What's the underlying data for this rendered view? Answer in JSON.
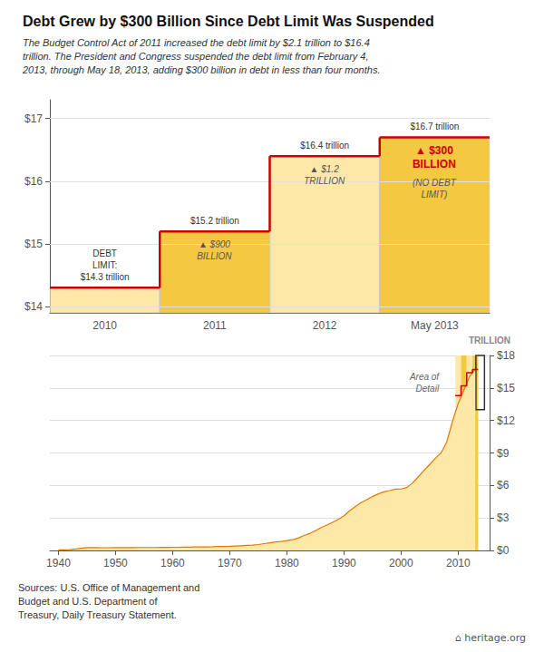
{
  "chart_data": [
    {
      "type": "bar",
      "title": "Debt Grew by $300 Billion Since Debt Limit Was Suspended",
      "subtitle": "The Budget Control Act of 2011 increased the debt limit by $2.1 trillion to $16.4\ntrillion. The President and Congress suspended the debt limit from February 4,\n2013, through May 18, 2013, adding $300 billion in debt in less than four months.",
      "categories": [
        "2010",
        "2011",
        "2012",
        "May 2013"
      ],
      "series": [
        {
          "type": "bar",
          "values": [
            14.3,
            15.2,
            16.4,
            16.7
          ],
          "colors": [
            "#fde8a8",
            "#f5c842",
            "#fde8a8",
            "#f5c842"
          ],
          "value_labels": [
            "DEBT\nLIMIT:\n$14.3 trillion",
            "$15.2 trillion",
            "$16.4 trillion",
            "$16.7 trillion"
          ]
        },
        {
          "type": "line",
          "line_style": "step",
          "color": "#cc0000",
          "values": [
            14.3,
            15.2,
            16.4,
            16.7
          ]
        }
      ],
      "data_labels": true,
      "ylim": [
        13.9,
        17.3
      ],
      "yticks": [
        {
          "value": 14,
          "label": "$14"
        },
        {
          "value": 15,
          "label": "$15"
        },
        {
          "value": 16,
          "label": "$16"
        },
        {
          "value": 17,
          "label": "$17"
        }
      ],
      "grid": true,
      "annotations": [
        {
          "category": "2011",
          "text": "▲ $900\nBILLION"
        },
        {
          "category": "2012",
          "text": "▲ $1.2\nTRILLION"
        },
        {
          "category": "May 2013",
          "text": "▲ $300\nBILLION",
          "color": "#cc0000"
        },
        {
          "category": "May 2013",
          "text": "(NO DEBT\nLIMIT)"
        }
      ]
    },
    {
      "type": "line",
      "series": [
        {
          "type": "line",
          "color": "#e07800",
          "fill_color": "#fde8a8",
          "x": [
            1940,
            1941,
            1942,
            1943,
            1944,
            1945,
            1946,
            1947,
            1948,
            1949,
            1950,
            1951,
            1952,
            1953,
            1954,
            1955,
            1956,
            1957,
            1958,
            1959,
            1960,
            1961,
            1962,
            1963,
            1964,
            1965,
            1966,
            1967,
            1968,
            1969,
            1970,
            1971,
            1972,
            1973,
            1974,
            1975,
            1976,
            1977,
            1978,
            1979,
            1980,
            1981,
            1982,
            1983,
            1984,
            1985,
            1986,
            1987,
            1988,
            1989,
            1990,
            1991,
            1992,
            1993,
            1994,
            1995,
            1996,
            1997,
            1998,
            1999,
            2000,
            2001,
            2002,
            2003,
            2004,
            2005,
            2006,
            2007,
            2008,
            2009,
            2010,
            2011,
            2012,
            2013
          ],
          "values": [
            0.051,
            0.057,
            0.079,
            0.137,
            0.202,
            0.259,
            0.269,
            0.258,
            0.252,
            0.253,
            0.257,
            0.255,
            0.259,
            0.266,
            0.271,
            0.274,
            0.273,
            0.272,
            0.28,
            0.288,
            0.291,
            0.293,
            0.303,
            0.311,
            0.317,
            0.323,
            0.329,
            0.341,
            0.369,
            0.367,
            0.381,
            0.409,
            0.437,
            0.466,
            0.484,
            0.542,
            0.629,
            0.706,
            0.777,
            0.83,
            0.908,
            0.994,
            1.142,
            1.377,
            1.564,
            1.817,
            2.12,
            2.346,
            2.601,
            2.868,
            3.207,
            3.665,
            4.064,
            4.411,
            4.693,
            4.974,
            5.225,
            5.413,
            5.526,
            5.656,
            5.674,
            5.807,
            6.228,
            6.783,
            7.379,
            7.933,
            8.507,
            9.008,
            10.025,
            11.91,
            13.562,
            14.79,
            16.066,
            16.738
          ]
        },
        {
          "type": "line",
          "color": "#cc0000",
          "x": [
            2009.5,
            2010.5,
            2010.5,
            2011.5,
            2011.5,
            2012.5,
            2012.5,
            2013.5
          ],
          "values": [
            14.3,
            14.3,
            15.2,
            15.2,
            16.4,
            16.4,
            16.7,
            16.7
          ]
        }
      ],
      "xlim": [
        1938.5,
        2015.5
      ],
      "xticks": [
        1940,
        1950,
        1960,
        1970,
        1980,
        1990,
        2000,
        2010
      ],
      "ylim": [
        0,
        18
      ],
      "yticks": [
        {
          "value": 0,
          "label": "$0"
        },
        {
          "value": 3,
          "label": "$3"
        },
        {
          "value": 6,
          "label": "$6"
        },
        {
          "value": 9,
          "label": "$9"
        },
        {
          "value": 12,
          "label": "$12"
        },
        {
          "value": 15,
          "label": "$15"
        },
        {
          "value": 18,
          "label": "$18"
        }
      ],
      "y_label": "TRILLION",
      "grid": true,
      "spans": [
        {
          "x": [
            2009.5,
            2010.5
          ],
          "color": "#fde8a8"
        },
        {
          "x": [
            2010.5,
            2011.5
          ],
          "color": "#f5c842"
        },
        {
          "x": [
            2011.5,
            2012.5
          ],
          "color": "#fde8a8"
        },
        {
          "x": [
            2012.5,
            2013.5
          ],
          "color": "#f5c842"
        }
      ],
      "detail_box": {
        "x": 2013.1,
        "width": 1.5,
        "y": 13,
        "height": 5,
        "label": "Area of\nDetail"
      },
      "source": "Sources: U.S. Office of Management and\nBudget and U.S. Department of\nTreasury, Daily Treasury Statement.",
      "logo": "⌂ heritage.org"
    }
  ]
}
